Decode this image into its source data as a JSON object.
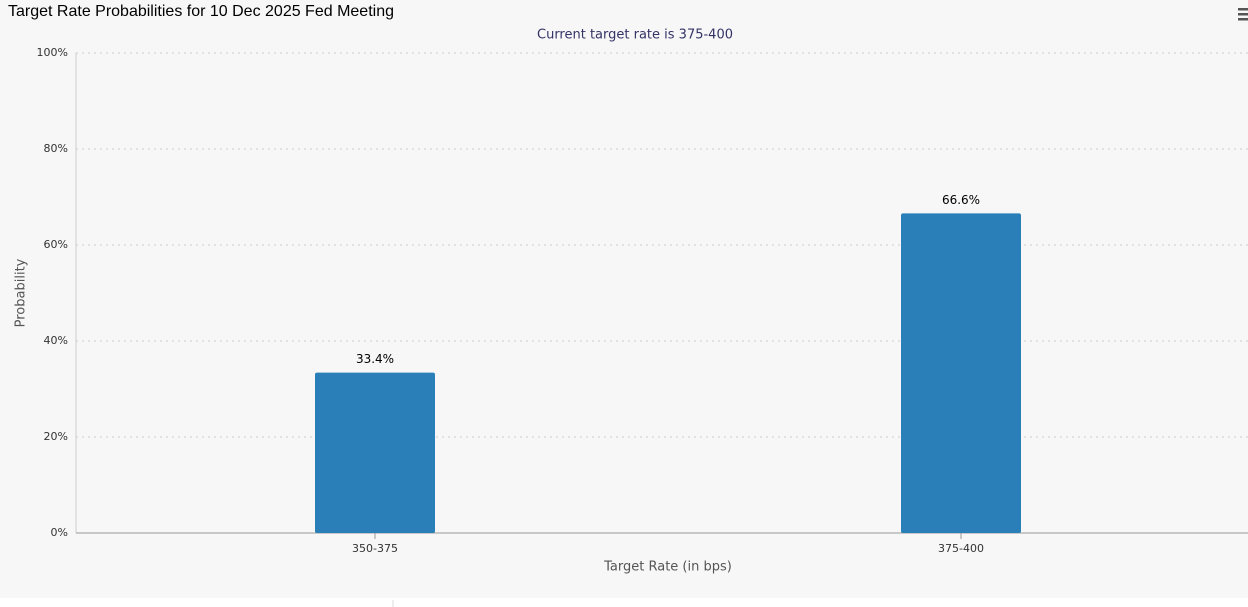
{
  "chart_data": {
    "type": "bar",
    "title": "Target Rate Probabilities for 10 Dec 2025 Fed Meeting",
    "subtitle": "Current target rate is 375-400",
    "x_label": "Target Rate (in bps)",
    "y_label": "Probability",
    "categories": [
      "350-375",
      "375-400"
    ],
    "values": [
      33.4,
      66.6
    ],
    "value_labels": [
      "33.4%",
      "66.6%"
    ],
    "color": "#2a7fb8",
    "ylim": [
      0,
      100
    ],
    "yticks": [
      {
        "value": 0,
        "label": "0%"
      },
      {
        "value": 20,
        "label": "20%"
      },
      {
        "value": 40,
        "label": "40%"
      },
      {
        "value": 60,
        "label": "60%"
      },
      {
        "value": 80,
        "label": "80%"
      },
      {
        "value": 100,
        "label": "100%"
      }
    ],
    "grid": true
  }
}
